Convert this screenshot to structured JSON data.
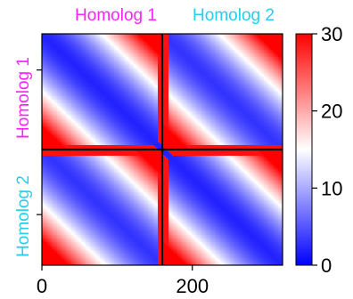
{
  "chart_data": {
    "type": "heatmap",
    "title": "",
    "xlabel": "",
    "ylabel": "",
    "matrix_size": 320,
    "xlim": [
      0,
      320
    ],
    "ylim": [
      320,
      0
    ],
    "x_ticks": [
      0,
      200
    ],
    "x_tick_labels": [
      "0",
      "200"
    ],
    "y_ticks": [
      50,
      250
    ],
    "homolog_boundary": 160,
    "block_labels": {
      "top": [
        "Homolog 1",
        "Homolog 2"
      ],
      "left": [
        "Homolog 1",
        "Homolog 2"
      ]
    },
    "block_label_colors": {
      "Homolog 1": "#ff22ff",
      "Homolog 2": "#22d0ee"
    },
    "colorbar": {
      "min": 0,
      "max": 30,
      "ticks": [
        0,
        10,
        20,
        30
      ],
      "tick_labels": [
        "0",
        "10",
        "20",
        "30"
      ],
      "colormap": "bwr",
      "colors": {
        "low": "#0000ff",
        "mid": "#ffffff",
        "high": "#ff0000"
      }
    },
    "pattern": {
      "within_block": "distance grows with separation along the chromosome: blue near the diagonal, red in the far corners",
      "homolog_diagonal": "blue diagonal in the inter-homolog blocks (paired homologs)",
      "boundary_rows_cols": "red band at the homolog boundary"
    }
  }
}
